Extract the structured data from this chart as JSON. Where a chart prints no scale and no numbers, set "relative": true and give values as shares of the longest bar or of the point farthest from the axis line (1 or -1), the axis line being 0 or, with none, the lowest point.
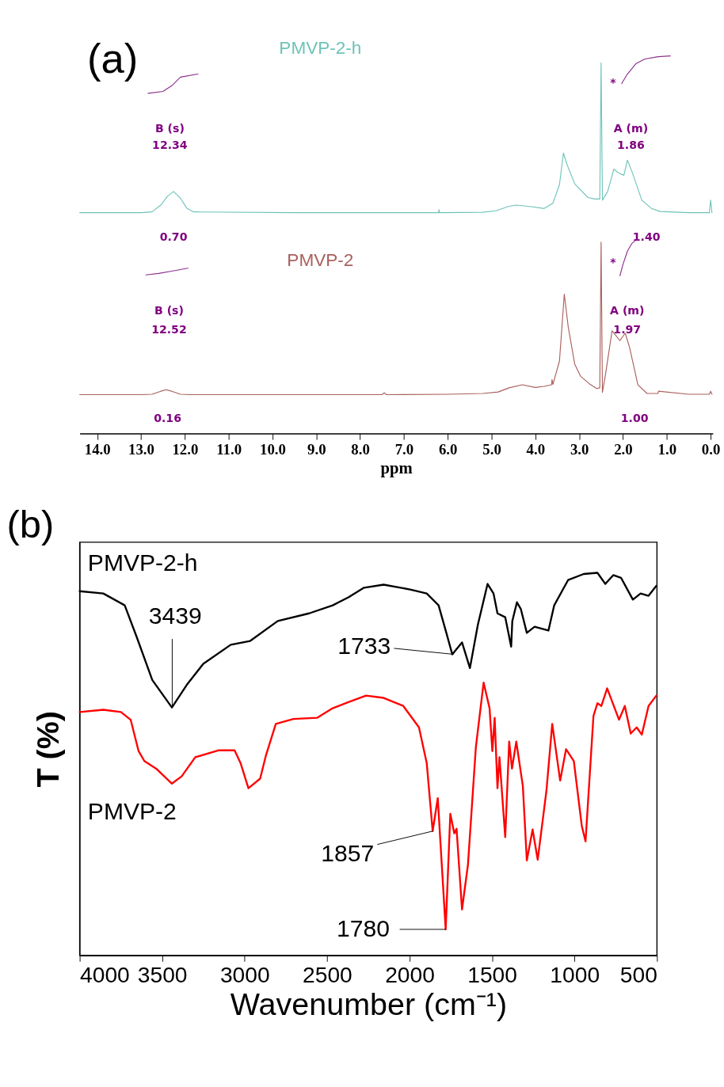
{
  "chart_data": [
    {
      "type": "line",
      "title": "(a)",
      "xlabel": "ppm",
      "relative": true,
      "xlim": [
        14.4,
        -0.05
      ],
      "xticks": [
        {
          "value": 14,
          "label": "14.0"
        },
        {
          "value": 13,
          "label": "13.0"
        },
        {
          "value": 12,
          "label": "12.0"
        },
        {
          "value": 11,
          "label": "11.0"
        },
        {
          "value": 10,
          "label": "10.0"
        },
        {
          "value": 9,
          "label": "9.0"
        },
        {
          "value": 8,
          "label": "8.0"
        },
        {
          "value": 7,
          "label": "7.0"
        },
        {
          "value": 6,
          "label": "6.0"
        },
        {
          "value": 5,
          "label": "5.0"
        },
        {
          "value": 4,
          "label": "4.0"
        },
        {
          "value": 3,
          "label": "3.0"
        },
        {
          "value": 2,
          "label": "2.0"
        },
        {
          "value": 1,
          "label": "1.0"
        },
        {
          "value": 0,
          "label": "0.0"
        }
      ],
      "series": [
        {
          "name": "PMVP-2-h",
          "color": "#6ec3b9",
          "x": [
            14.4,
            13.0,
            12.75,
            12.55,
            12.4,
            12.26,
            12.1,
            11.95,
            11.8,
            9.5,
            7.0,
            6.21,
            6.2,
            6.19,
            5.2,
            4.9,
            4.6,
            4.44,
            4.1,
            3.8,
            3.6,
            3.45,
            3.36,
            3.28,
            3.1,
            2.8,
            2.64,
            2.53,
            2.5,
            2.47,
            2.35,
            2.21,
            2.1,
            1.98,
            1.9,
            1.8,
            1.57,
            1.35,
            1.16,
            0.5,
            0.03,
            0.0,
            -0.03
          ],
          "values": [
            0.585,
            0.585,
            0.587,
            0.605,
            0.628,
            0.641,
            0.623,
            0.596,
            0.587,
            0.585,
            0.585,
            0.585,
            0.593,
            0.585,
            0.586,
            0.59,
            0.602,
            0.605,
            0.601,
            0.596,
            0.61,
            0.659,
            0.743,
            0.713,
            0.661,
            0.625,
            0.621,
            0.621,
            0.982,
            0.618,
            0.641,
            0.7,
            0.69,
            0.684,
            0.724,
            0.695,
            0.618,
            0.596,
            0.588,
            0.585,
            0.585,
            0.618,
            0.585
          ]
        },
        {
          "name": "PMVP-2",
          "color": "#a9605c",
          "x": [
            14.4,
            13.0,
            12.75,
            12.55,
            12.43,
            12.3,
            12.1,
            11.9,
            9.5,
            7.5,
            7.45,
            7.4,
            6.0,
            5.2,
            4.85,
            4.6,
            4.3,
            4.0,
            3.8,
            3.63,
            3.62,
            3.6,
            3.45,
            3.34,
            3.25,
            3.1,
            2.97,
            2.75,
            2.6,
            2.53,
            2.5,
            2.47,
            2.4,
            2.25,
            2.07,
            1.95,
            1.85,
            1.66,
            1.45,
            1.2,
            1.19,
            0.5,
            0.03,
            0.0,
            -0.03
          ],
          "values": [
            0.103,
            0.103,
            0.104,
            0.112,
            0.116,
            0.112,
            0.104,
            0.103,
            0.103,
            0.103,
            0.108,
            0.103,
            0.104,
            0.106,
            0.11,
            0.121,
            0.129,
            0.122,
            0.125,
            0.129,
            0.143,
            0.13,
            0.192,
            0.369,
            0.282,
            0.183,
            0.152,
            0.13,
            0.119,
            0.121,
            0.507,
            0.109,
            0.156,
            0.272,
            0.246,
            0.266,
            0.228,
            0.129,
            0.106,
            0.106,
            0.112,
            0.104,
            0.104,
            0.112,
            0.104
          ]
        },
        {
          "color": "#8b2f8b",
          "x": [
            12.84,
            12.5,
            12.3,
            12.1,
            11.7
          ],
          "values": [
            0.901,
            0.906,
            0.921,
            0.944,
            0.952
          ]
        },
        {
          "color": "#8b2f8b",
          "x": [
            2.03,
            1.9,
            1.7,
            1.5,
            1.2,
            0.92
          ],
          "values": [
            0.927,
            0.952,
            0.98,
            0.992,
            0.998,
            1.0
          ]
        },
        {
          "color": "#8b2f8b",
          "x": [
            12.89,
            12.6,
            12.3,
            11.93
          ],
          "values": [
            0.42,
            0.424,
            0.43,
            0.438
          ]
        },
        {
          "color": "#8b2f8b",
          "x": [
            2.07,
            2.0,
            1.9,
            1.8,
            1.7
          ],
          "values": [
            0.418,
            0.448,
            0.483,
            0.503,
            0.513
          ]
        }
      ],
      "annotations": [
        "B (s)",
        "12.34",
        "0.70",
        "A (m)",
        "1.86",
        "1.40",
        "*",
        "B (s)",
        "12.52",
        "0.16",
        "A (m)",
        "1.97",
        "1.00",
        "*"
      ]
    },
    {
      "type": "line",
      "title": "(b)",
      "xlabel": "Wavenumber (cm⁻¹)",
      "ylabel": "T (%)",
      "relative": true,
      "xlim": [
        4000,
        500
      ],
      "xticks": [
        4000,
        3500,
        3000,
        2500,
        2000,
        1500,
        1000,
        500
      ],
      "series": [
        {
          "name": "PMVP-2-h",
          "color": "#000000",
          "x": [
            4000,
            3857,
            3727,
            3655,
            3560,
            3441,
            3346,
            3251,
            3084,
            2966,
            2799,
            2609,
            2466,
            2371,
            2276,
            2157,
            1991,
            1896,
            1824,
            1777,
            1741,
            1682,
            1634,
            1586,
            1527,
            1491,
            1467,
            1420,
            1384,
            1377,
            1349,
            1325,
            1289,
            1242,
            1158,
            1123,
            1039,
            944,
            861,
            813,
            765,
            718,
            646,
            599,
            551,
            504
          ],
          "values": [
            0.952,
            0.946,
            0.915,
            0.833,
            0.72,
            0.648,
            0.71,
            0.762,
            0.812,
            0.822,
            0.874,
            0.894,
            0.915,
            0.936,
            0.961,
            0.969,
            0.956,
            0.946,
            0.915,
            0.843,
            0.787,
            0.818,
            0.751,
            0.864,
            0.971,
            0.946,
            0.894,
            0.884,
            0.807,
            0.874,
            0.923,
            0.905,
            0.843,
            0.859,
            0.849,
            0.915,
            0.981,
            0.997,
            1.0,
            0.971,
            0.994,
            0.987,
            0.93,
            0.946,
            0.94,
            0.966
          ]
        },
        {
          "name": "PMVP-2",
          "color": "#ff0000",
          "x": [
            4000,
            3857,
            3750,
            3691,
            3643,
            3608,
            3536,
            3441,
            3382,
            3299,
            3156,
            3061,
            3025,
            2977,
            2906,
            2870,
            2811,
            2704,
            2561,
            2466,
            2371,
            2264,
            2157,
            2038,
            1943,
            1896,
            1860,
            1829,
            1781,
            1753,
            1729,
            1715,
            1682,
            1646,
            1598,
            1551,
            1515,
            1498,
            1484,
            1467,
            1455,
            1420,
            1396,
            1379,
            1353,
            1313,
            1289,
            1254,
            1223,
            1170,
            1135,
            1087,
            1051,
            1004,
            956,
            933,
            885,
            861,
            837,
            802,
            730,
            695,
            659,
            623,
            592,
            551,
            504
          ],
          "values": [
            0.636,
            0.642,
            0.636,
            0.616,
            0.534,
            0.508,
            0.488,
            0.449,
            0.468,
            0.518,
            0.536,
            0.536,
            0.503,
            0.437,
            0.462,
            0.524,
            0.605,
            0.618,
            0.621,
            0.646,
            0.662,
            0.679,
            0.673,
            0.652,
            0.596,
            0.503,
            0.325,
            0.411,
            0.068,
            0.37,
            0.319,
            0.331,
            0.12,
            0.237,
            0.544,
            0.713,
            0.646,
            0.534,
            0.621,
            0.437,
            0.518,
            0.309,
            0.559,
            0.488,
            0.559,
            0.442,
            0.248,
            0.329,
            0.25,
            0.431,
            0.605,
            0.457,
            0.539,
            0.508,
            0.339,
            0.298,
            0.626,
            0.659,
            0.652,
            0.698,
            0.616,
            0.652,
            0.58,
            0.596,
            0.577,
            0.652,
            0.679
          ]
        }
      ],
      "annotations": [
        {
          "text": "3439",
          "x": 3439,
          "y": 0.648
        },
        {
          "text": "1733",
          "x": 1733,
          "y": 0.787
        },
        {
          "text": "1857",
          "x": 1857,
          "y": 0.325
        },
        {
          "text": "1780",
          "x": 1780,
          "y": 0.068
        }
      ]
    }
  ]
}
